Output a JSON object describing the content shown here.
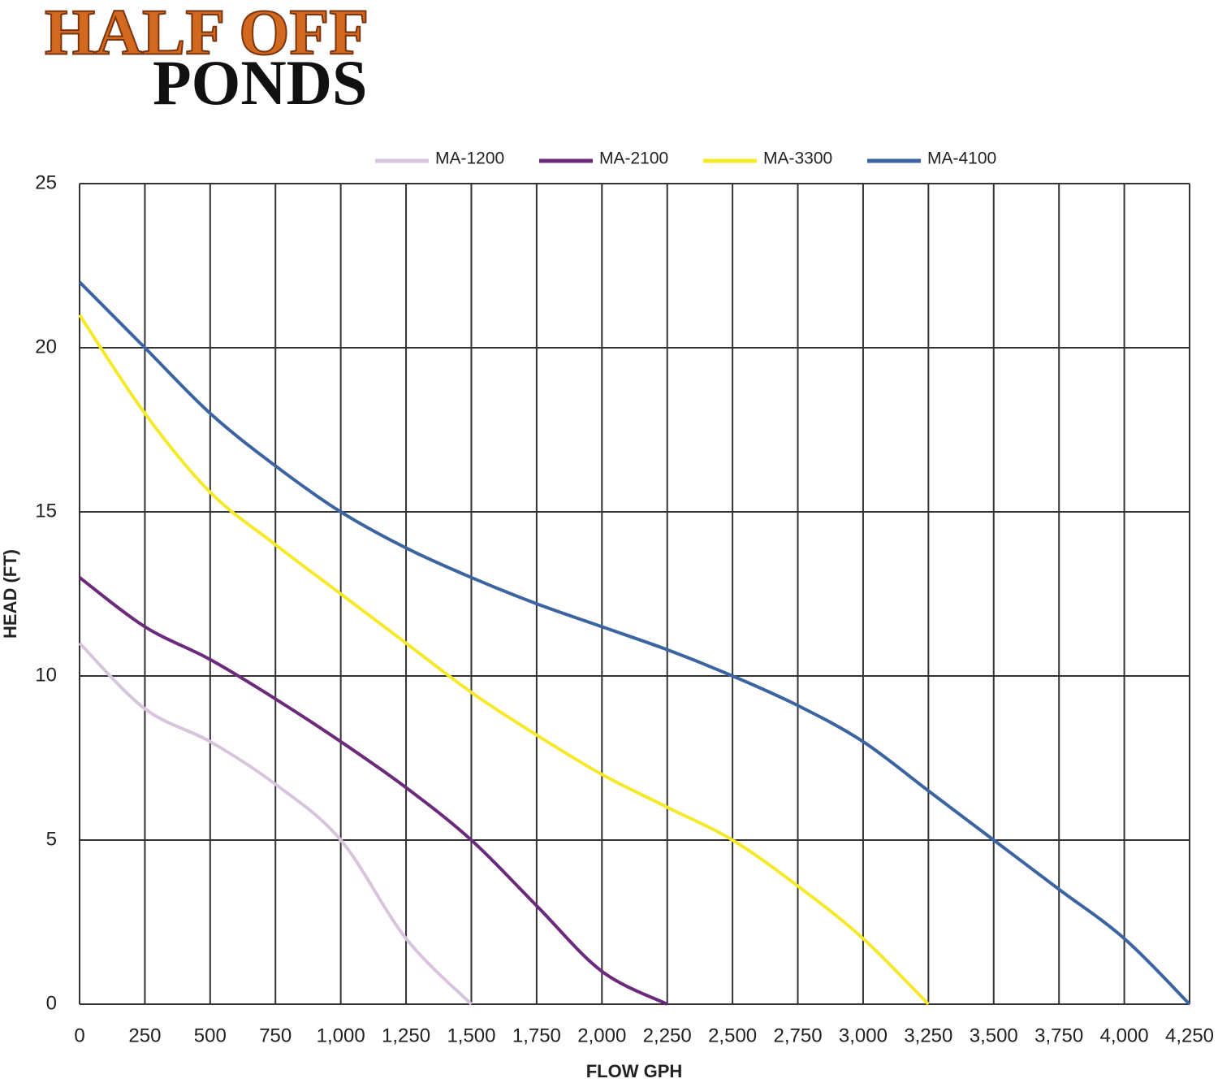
{
  "logo": [
    "HALF OFF",
    "PONDS"
  ],
  "chart_data": {
    "type": "line",
    "xlabel": "FLOW GPH",
    "ylabel": "HEAD (FT)",
    "xlim": [
      0,
      4250
    ],
    "ylim": [
      0,
      25
    ],
    "xticks": [
      0,
      250,
      500,
      750,
      {
        "value": 1000,
        "label": "1,000"
      },
      {
        "value": 1250,
        "label": "1,250"
      },
      {
        "value": 1500,
        "label": "1,500"
      },
      {
        "value": 1750,
        "label": "1,750"
      },
      {
        "value": 2000,
        "label": "2,000"
      },
      {
        "value": 2250,
        "label": "2,250"
      },
      {
        "value": 2500,
        "label": "2,500"
      },
      {
        "value": 2750,
        "label": "2,750"
      },
      {
        "value": 3000,
        "label": "3,000"
      },
      {
        "value": 3250,
        "label": "3,250"
      },
      {
        "value": 3500,
        "label": "3,500"
      },
      {
        "value": 3750,
        "label": "3,750"
      },
      {
        "value": 4000,
        "label": "4,000"
      },
      {
        "value": 4250,
        "label": "4,250"
      }
    ],
    "yticks": [
      0,
      5,
      10,
      15,
      20,
      25
    ],
    "grid": true,
    "legend": "top",
    "series": [
      {
        "name": "MA-1200",
        "color": "#d9c4dd",
        "x": [
          0,
          250,
          500,
          750,
          1000,
          1250,
          1500
        ],
        "values": [
          11,
          9,
          8,
          6.7,
          5,
          2,
          0
        ]
      },
      {
        "name": "MA-2100",
        "color": "#6b2a7a",
        "x": [
          0,
          250,
          500,
          750,
          1000,
          1250,
          1500,
          1750,
          2000,
          2250
        ],
        "values": [
          13,
          11.5,
          10.5,
          9.3,
          8,
          6.6,
          5,
          3,
          1,
          0
        ]
      },
      {
        "name": "MA-3300",
        "color": "#f5e92a",
        "x": [
          0,
          250,
          500,
          750,
          1000,
          1250,
          1500,
          1750,
          2000,
          2250,
          2500,
          2750,
          3000,
          3250
        ],
        "values": [
          21,
          18,
          15.6,
          14,
          12.5,
          11,
          9.5,
          8.2,
          7,
          6,
          5,
          3.6,
          2,
          0
        ]
      },
      {
        "name": "MA-4100",
        "color": "#3b64a1",
        "x": [
          0,
          250,
          500,
          750,
          1000,
          1250,
          1500,
          1750,
          2000,
          2250,
          2500,
          2750,
          3000,
          3250,
          3500,
          3750,
          4000,
          4250
        ],
        "values": [
          22,
          20,
          18,
          16.4,
          15,
          13.9,
          13,
          12.2,
          11.5,
          10.8,
          10,
          9.1,
          8,
          6.5,
          5,
          3.5,
          2,
          0
        ]
      }
    ]
  }
}
